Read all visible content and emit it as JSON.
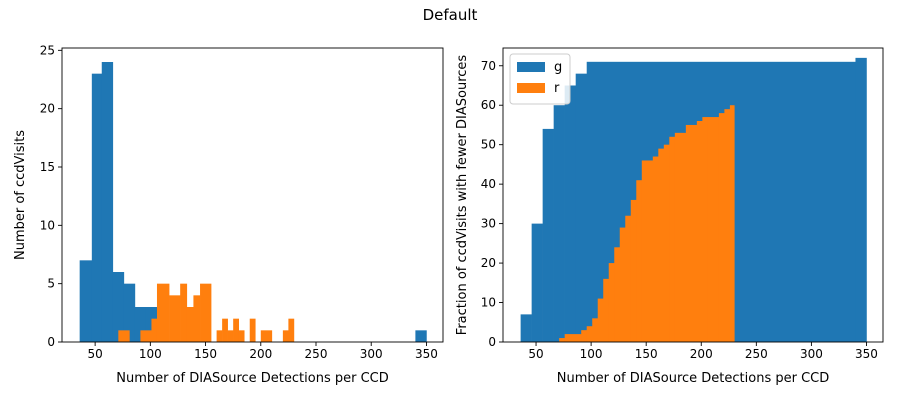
{
  "figure": {
    "suptitle": "Default"
  },
  "chart_data": [
    {
      "type": "bar",
      "subtype": "histogram",
      "xlabel": "Number of DIASource Detections per CCD",
      "ylabel": "Number of ccdVisits",
      "xlim": [
        20,
        365
      ],
      "ylim": [
        0,
        25.2
      ],
      "xticks": [
        50,
        100,
        150,
        200,
        250,
        300,
        350
      ],
      "yticks": [
        0,
        5,
        10,
        15,
        20,
        25
      ],
      "legend": "none",
      "series": [
        {
          "color": "#1f77b4",
          "bins": [
            {
              "x0": 36,
              "x1": 47,
              "value": 7
            },
            {
              "x0": 47,
              "x1": 56,
              "value": 23
            },
            {
              "x0": 56,
              "x1": 66,
              "value": 24
            },
            {
              "x0": 66,
              "x1": 76,
              "value": 6
            },
            {
              "x0": 76,
              "x1": 86,
              "value": 5
            },
            {
              "x0": 86,
              "x1": 96,
              "value": 3
            },
            {
              "x0": 96,
              "x1": 106,
              "value": 3
            },
            {
              "x0": 340,
              "x1": 350,
              "value": 1
            }
          ]
        },
        {
          "color": "#ff7f0e",
          "bins": [
            {
              "x0": 71,
              "x1": 81,
              "value": 1
            },
            {
              "x0": 91,
              "x1": 101,
              "value": 1
            },
            {
              "x0": 101,
              "x1": 106,
              "value": 2
            },
            {
              "x0": 106,
              "x1": 117,
              "value": 5
            },
            {
              "x0": 117,
              "x1": 127,
              "value": 4
            },
            {
              "x0": 127,
              "x1": 133,
              "value": 5
            },
            {
              "x0": 133,
              "x1": 139,
              "value": 3
            },
            {
              "x0": 139,
              "x1": 145,
              "value": 4
            },
            {
              "x0": 145,
              "x1": 155,
              "value": 5
            },
            {
              "x0": 160,
              "x1": 165,
              "value": 1
            },
            {
              "x0": 165,
              "x1": 170,
              "value": 2
            },
            {
              "x0": 170,
              "x1": 175,
              "value": 1
            },
            {
              "x0": 175,
              "x1": 180,
              "value": 2
            },
            {
              "x0": 180,
              "x1": 185,
              "value": 1
            },
            {
              "x0": 190,
              "x1": 195,
              "value": 2
            },
            {
              "x0": 200,
              "x1": 210,
              "value": 1
            },
            {
              "x0": 220,
              "x1": 225,
              "value": 1
            },
            {
              "x0": 225,
              "x1": 230,
              "value": 2
            }
          ]
        }
      ]
    },
    {
      "type": "bar",
      "subtype": "cumulative histogram",
      "xlabel": "Number of DIASource Detections per CCD",
      "ylabel": "Fraction of ccdVisits with fewer DIASources",
      "xlim": [
        20,
        365
      ],
      "ylim": [
        0,
        74.5
      ],
      "xticks": [
        50,
        100,
        150,
        200,
        250,
        300,
        350
      ],
      "yticks": [
        0,
        10,
        20,
        30,
        40,
        50,
        60,
        70
      ],
      "legend": "top-left",
      "series": [
        {
          "name": "g",
          "color": "#1f77b4",
          "steps": [
            {
              "x0": 36,
              "x1": 46,
              "value": 7
            },
            {
              "x0": 46,
              "x1": 56,
              "value": 30
            },
            {
              "x0": 56,
              "x1": 66,
              "value": 54
            },
            {
              "x0": 66,
              "x1": 76,
              "value": 60
            },
            {
              "x0": 76,
              "x1": 86,
              "value": 65
            },
            {
              "x0": 86,
              "x1": 96,
              "value": 68
            },
            {
              "x0": 96,
              "x1": 340,
              "value": 71
            },
            {
              "x0": 340,
              "x1": 350,
              "value": 72
            }
          ]
        },
        {
          "name": "r",
          "color": "#ff7f0e",
          "steps": [
            {
              "x0": 71,
              "x1": 76,
              "value": 1
            },
            {
              "x0": 76,
              "x1": 91,
              "value": 2
            },
            {
              "x0": 91,
              "x1": 96,
              "value": 3
            },
            {
              "x0": 96,
              "x1": 101,
              "value": 4
            },
            {
              "x0": 101,
              "x1": 106,
              "value": 6
            },
            {
              "x0": 106,
              "x1": 111,
              "value": 11
            },
            {
              "x0": 111,
              "x1": 116,
              "value": 16
            },
            {
              "x0": 116,
              "x1": 121,
              "value": 20
            },
            {
              "x0": 121,
              "x1": 126,
              "value": 24
            },
            {
              "x0": 126,
              "x1": 131,
              "value": 29
            },
            {
              "x0": 131,
              "x1": 136,
              "value": 32
            },
            {
              "x0": 136,
              "x1": 141,
              "value": 36
            },
            {
              "x0": 141,
              "x1": 146,
              "value": 41
            },
            {
              "x0": 146,
              "x1": 156,
              "value": 46
            },
            {
              "x0": 156,
              "x1": 161,
              "value": 47
            },
            {
              "x0": 161,
              "x1": 166,
              "value": 49
            },
            {
              "x0": 166,
              "x1": 171,
              "value": 50
            },
            {
              "x0": 171,
              "x1": 176,
              "value": 52
            },
            {
              "x0": 176,
              "x1": 186,
              "value": 53
            },
            {
              "x0": 186,
              "x1": 196,
              "value": 55
            },
            {
              "x0": 196,
              "x1": 201,
              "value": 56
            },
            {
              "x0": 201,
              "x1": 206,
              "value": 57
            },
            {
              "x0": 206,
              "x1": 216,
              "value": 57
            },
            {
              "x0": 216,
              "x1": 221,
              "value": 58
            },
            {
              "x0": 221,
              "x1": 226,
              "value": 59
            },
            {
              "x0": 226,
              "x1": 230,
              "value": 60
            }
          ]
        }
      ]
    }
  ]
}
